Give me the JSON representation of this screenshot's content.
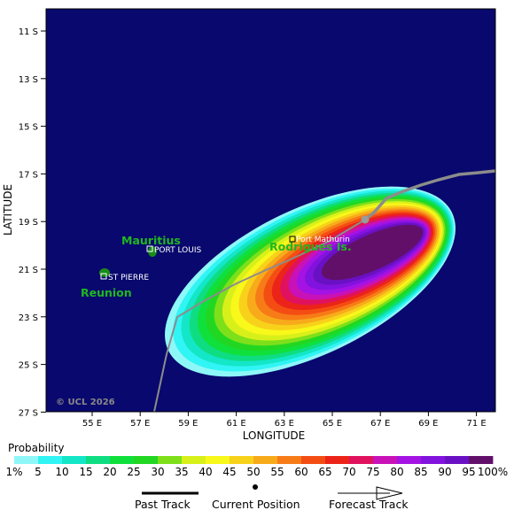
{
  "map": {
    "background_color": "#08086e",
    "y_axis_title": "LATITUDE",
    "x_axis_title": "LONGITUDE",
    "latitude_ticks": [
      "11 S",
      "13 S",
      "15 S",
      "17 S",
      "19 S",
      "21 S",
      "23 S",
      "25 S",
      "27 S"
    ],
    "longitude_ticks": [
      "55 E",
      "57 E",
      "59 E",
      "61 E",
      "63 E",
      "65 E",
      "67 E",
      "69 E",
      "71 E"
    ],
    "copyright": "© UCL 2026"
  },
  "places": {
    "mauritius": "Mauritius",
    "reunion": "Reunion",
    "rodrigues": "Rodrigues Is.",
    "port_louis": "PORT LOUIS",
    "st_pierre": "ST PIERRE",
    "port_mathurin": "Port Mathurin",
    "island_color": "#1a8c1a",
    "label_color": "#1fb81f"
  },
  "probability_legend": {
    "title": "Probability",
    "labels": [
      "1%",
      "5",
      "10",
      "15",
      "20",
      "25",
      "30",
      "35",
      "40",
      "45",
      "50",
      "55",
      "60",
      "65",
      "70",
      "75",
      "80",
      "85",
      "90",
      "95",
      "100%"
    ],
    "colors": [
      "#8ef8f8",
      "#31f4f4",
      "#14e6c8",
      "#0fdd82",
      "#10e03c",
      "#22d722",
      "#7de01a",
      "#d8f01a",
      "#f8f81a",
      "#f8d21a",
      "#f8ab1a",
      "#f77b17",
      "#f44d13",
      "#ec2318",
      "#e0125d",
      "#c812b8",
      "#a412e4",
      "#8212dd",
      "#6a10c4",
      "#620f6a"
    ]
  },
  "track_key": {
    "past": "Past Track",
    "current": "Current Position",
    "forecast": "Forecast Track"
  }
}
